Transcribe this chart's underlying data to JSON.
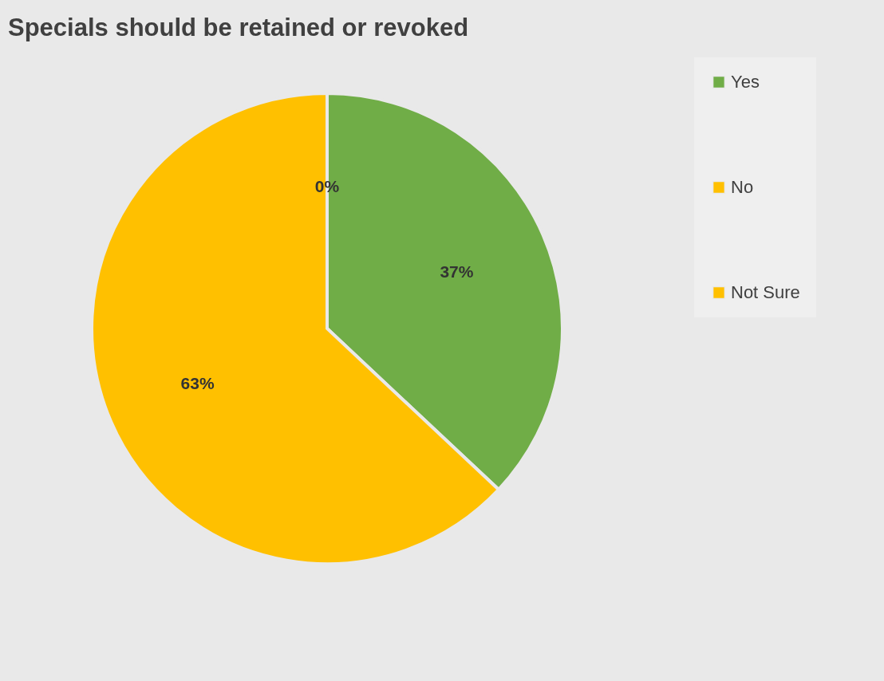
{
  "chart_data": {
    "type": "pie",
    "title": "Specials should be retained or revoked",
    "categories": [
      "Yes",
      "No",
      "Not Sure"
    ],
    "values": [
      37,
      63,
      0
    ],
    "colors": [
      "#70ad47",
      "#ffc000",
      "#ffc000"
    ],
    "value_labels": [
      "37%",
      "63%",
      "0%"
    ],
    "legend": "right"
  }
}
